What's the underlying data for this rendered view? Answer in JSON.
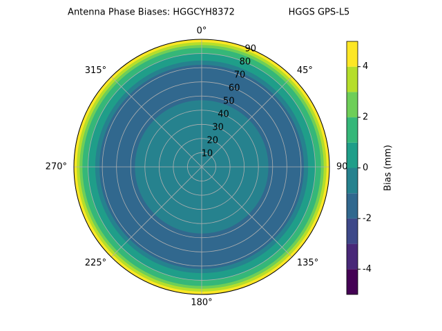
{
  "chart_data": {
    "type": "polar-contour",
    "title": "Antenna Phase Biases: HGGCYH8372",
    "subtitle": "HGGS GPS-L5",
    "rlim": [
      0,
      90
    ],
    "rticks": [
      10,
      20,
      30,
      40,
      50,
      60,
      70,
      80,
      90
    ],
    "thetaticks": [
      {
        "value": 0,
        "label": "0°"
      },
      {
        "value": 45,
        "label": "45°"
      },
      {
        "value": 90,
        "label": "90°"
      },
      {
        "value": 135,
        "label": "135°"
      },
      {
        "value": 180,
        "label": "180°"
      },
      {
        "value": 225,
        "label": "225°"
      },
      {
        "value": 270,
        "label": "270°"
      },
      {
        "value": 315,
        "label": "315°"
      }
    ],
    "ring_outer": [
      47,
      72,
      75,
      80,
      84,
      86,
      88,
      90
    ],
    "ring_value": [
      -0.5,
      -1.5,
      -0.5,
      0.5,
      1.5,
      2.5,
      3.5,
      4.5
    ],
    "levels": [
      -5,
      -4,
      -3,
      -2,
      -1,
      0,
      1,
      2,
      3,
      4,
      5
    ],
    "colors": [
      "#440154",
      "#482878",
      "#3e4989",
      "#31688e",
      "#26828e",
      "#1f9e89",
      "#35b779",
      "#6ece58",
      "#b5de2b",
      "#fde725"
    ],
    "colorbar_label": "Bias (mm)",
    "colorbar_ticks": [
      -4,
      -2,
      0,
      2,
      4
    ],
    "grid": true
  }
}
